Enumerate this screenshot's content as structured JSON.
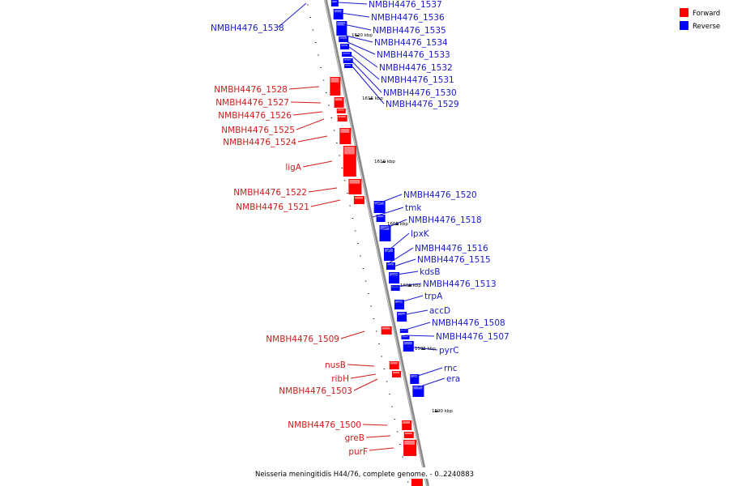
{
  "legend": {
    "forward_label": "Forward",
    "reverse_label": "Reverse",
    "forward_color": "#ff0000",
    "reverse_color": "#0000ff"
  },
  "caption": "Neisseria meningitidis H44/76, complete genome. - 0..2240883",
  "kbp_labels": [
    "1620 kbp",
    "1615 kbp",
    "1610 kbp",
    "1605 kbp",
    "1600 kbp",
    "1595 kbp",
    "1590 kbp"
  ],
  "reverse_genes": [
    "NMBH4476_1538",
    "NMBH4476_1537",
    "NMBH4476_1536",
    "NMBH4476_1535",
    "NMBH4476_1534",
    "NMBH4476_1533",
    "NMBH4476_1532",
    "NMBH4476_1531",
    "NMBH4476_1530",
    "NMBH4476_1529",
    "NMBH4476_1520",
    "tmk",
    "NMBH4476_1518",
    "lpxK",
    "NMBH4476_1516",
    "NMBH4476_1515",
    "kdsB",
    "NMBH4476_1513",
    "trpA",
    "accD",
    "NMBH4476_1508",
    "NMBH4476_1507",
    "pyrC",
    "rnc",
    "era"
  ],
  "forward_genes": [
    "NMBH4476_1528",
    "NMBH4476_1527",
    "NMBH4476_1526",
    "NMBH4476_1525",
    "NMBH4476_1524",
    "ligA",
    "NMBH4476_1522",
    "NMBH4476_1521",
    "NMBH4476_1509",
    "nusB",
    "ribH",
    "NMBH4476_1503",
    "NMBH4476_1500",
    "greB",
    "purF"
  ]
}
